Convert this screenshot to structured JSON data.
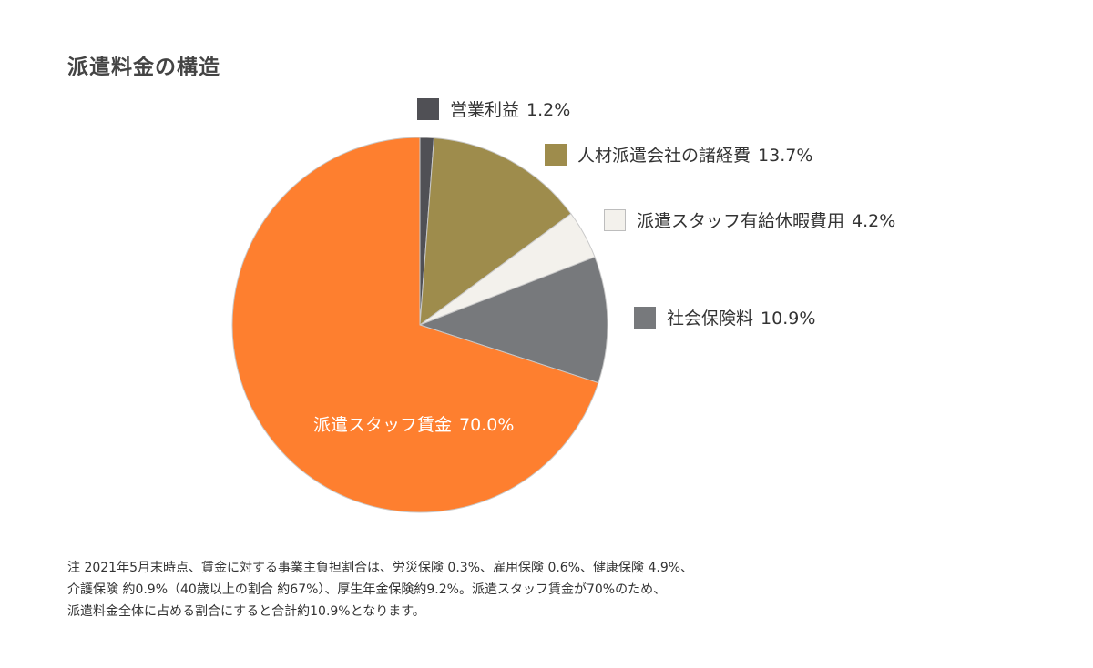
{
  "chart_data": {
    "type": "pie",
    "title": "派遣料金の構造",
    "slices": [
      {
        "name": "営業利益",
        "value": 1.2,
        "label": "1.2%",
        "color": "#505055"
      },
      {
        "name": "人材派遣会社の諸経費",
        "value": 13.7,
        "label": "13.7%",
        "color": "#9e8c4c"
      },
      {
        "name": "派遣スタッフ有給休暇費用",
        "value": 4.2,
        "label": "4.2%",
        "color": "#f3f1ec"
      },
      {
        "name": "社会保険料",
        "value": 10.9,
        "label": "10.9%",
        "color": "#77797c"
      },
      {
        "name": "派遣スタッフ賃金",
        "value": 70.0,
        "label": "70.0%",
        "color": "#fe7f2f"
      }
    ],
    "legend_placement": "right"
  },
  "notes": [
    "注 2021年5月末時点、賃金に対する事業主負担割合は、労災保険 0.3%、雇用保険 0.6%、健康保険 4.9%、",
    "介護保険 約0.9%（40歳以上の割合 約67%）、厚生年金保険約9.2%。派遣スタッフ賃金が70%のため、",
    "派遣料金全体に占める割合にすると合計約10.9%となります。"
  ]
}
